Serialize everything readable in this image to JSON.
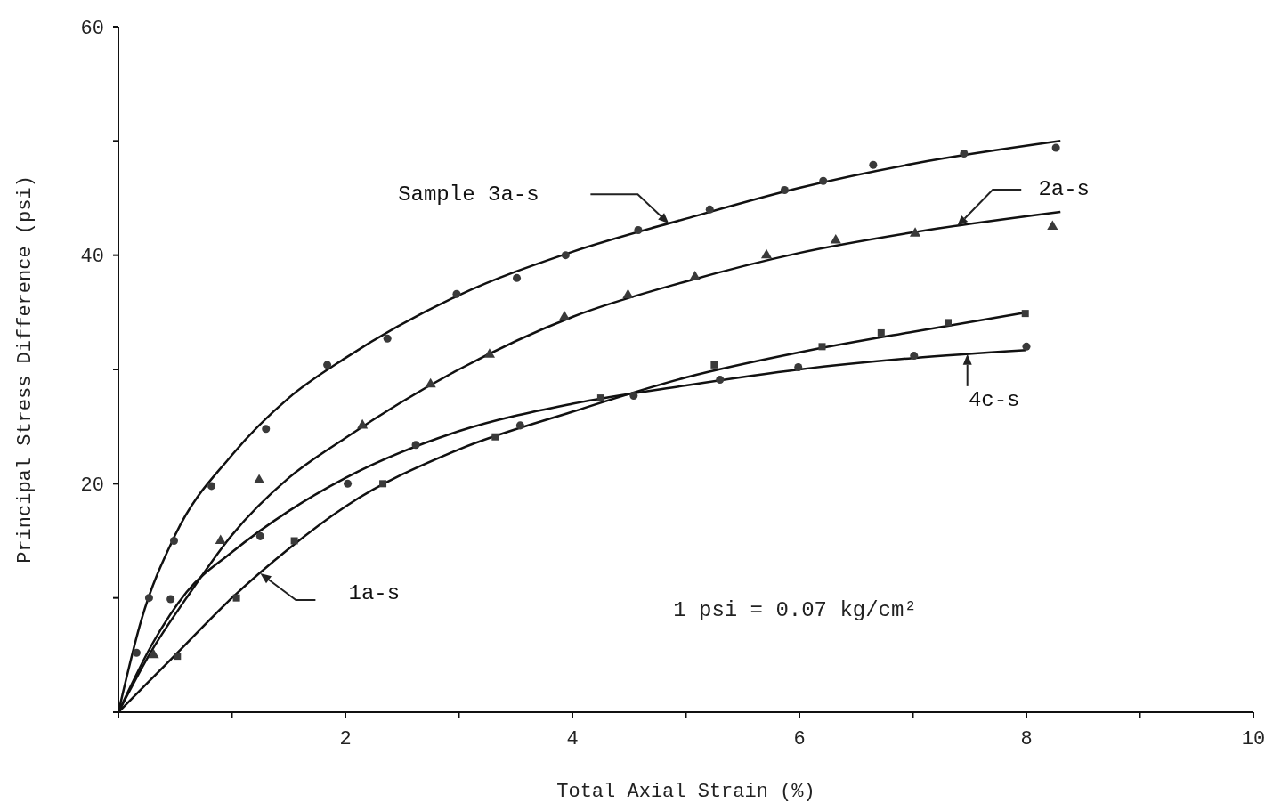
{
  "chart_data": {
    "type": "scatter",
    "xlabel": "Total Axial Strain (%)",
    "ylabel": "Principal Stress Difference (psi)",
    "xlim": [
      0,
      10
    ],
    "ylim": [
      0,
      60
    ],
    "xticks": [
      {
        "value": 0,
        "label": null
      },
      {
        "value": 1,
        "label": null
      },
      2,
      {
        "value": 3,
        "label": null
      },
      4,
      {
        "value": 5,
        "label": null
      },
      6,
      {
        "value": 7,
        "label": null
      },
      8,
      {
        "value": 9,
        "label": null
      },
      10
    ],
    "yticks": [
      {
        "value": 0,
        "label": null
      },
      {
        "value": 10,
        "label": null
      },
      20,
      {
        "value": 30,
        "label": null
      },
      40,
      {
        "value": 50,
        "label": null
      },
      60
    ],
    "series": [
      {
        "marker": "circle",
        "color": "#3a3a3a",
        "x": [
          0.27,
          0.49,
          0.82,
          1.3,
          1.84,
          2.37,
          2.98,
          3.51,
          3.94,
          4.58,
          5.21,
          5.87,
          6.21,
          6.65,
          7.45,
          8.26
        ],
        "values": [
          10,
          15,
          19.8,
          24.8,
          30.4,
          32.7,
          36.6,
          38,
          40,
          42.2,
          44,
          45.7,
          46.5,
          47.9,
          48.9,
          49.4
        ]
      },
      {
        "type": "line",
        "name": "Sample 3a-s",
        "marker": "none",
        "color": "#111111",
        "x": [
          0,
          0.2,
          0.5,
          1,
          1.5,
          2,
          3,
          4,
          5,
          6,
          7,
          8.3
        ],
        "values": [
          0,
          8,
          15.5,
          22.5,
          27.5,
          31,
          36.5,
          40.3,
          43.2,
          45.9,
          48,
          50
        ]
      },
      {
        "marker": "triangle",
        "color": "#3a3a3a",
        "x": [
          0.31,
          0.9,
          1.24,
          2.15,
          2.75,
          3.27,
          3.93,
          4.49,
          5.08,
          5.71,
          6.32,
          7.02,
          8.23
        ],
        "values": [
          5,
          15,
          20.3,
          25.1,
          28.7,
          31.3,
          34.6,
          36.5,
          38.1,
          40,
          41.3,
          41.9,
          42.5
        ]
      },
      {
        "type": "line",
        "name": "2a-s",
        "marker": "none",
        "color": "#111111",
        "x": [
          0,
          0.3,
          0.6,
          1,
          1.5,
          2,
          3,
          4,
          5,
          6,
          7,
          8.3
        ],
        "values": [
          0,
          5.5,
          10,
          15.5,
          20.5,
          24,
          30,
          34.6,
          37.7,
          40.2,
          42,
          43.8
        ]
      },
      {
        "marker": "square",
        "color": "#3a3a3a",
        "x": [
          0.52,
          1.04,
          1.55,
          2.33,
          3.32,
          4.25,
          5.25,
          6.2,
          6.72,
          7.31,
          7.99
        ],
        "values": [
          4.9,
          10,
          15,
          20,
          24.1,
          27.5,
          30.4,
          32,
          33.2,
          34.1,
          34.9
        ]
      },
      {
        "type": "line",
        "name": "1a-s",
        "marker": "none",
        "color": "#111111",
        "x": [
          0,
          0.5,
          1,
          1.5,
          2,
          3,
          4,
          5,
          6,
          7,
          8
        ],
        "values": [
          0,
          5,
          10,
          14.3,
          18,
          23,
          26.3,
          29.3,
          31.5,
          33.3,
          35
        ]
      },
      {
        "marker": "circle",
        "color": "#3a3a3a",
        "x": [
          0.16,
          0.46,
          1.25,
          2.02,
          2.62,
          3.54,
          4.54,
          5.3,
          5.99,
          7.01,
          8
        ],
        "values": [
          5.2,
          9.9,
          15.4,
          20,
          23.4,
          25.1,
          27.7,
          29.1,
          30.2,
          31.2,
          32
        ]
      },
      {
        "type": "line",
        "name": "4c-s",
        "marker": "none",
        "color": "#111111",
        "x": [
          0,
          0.3,
          0.6,
          1,
          1.5,
          2,
          3,
          4,
          5,
          6,
          7,
          8
        ],
        "values": [
          0,
          6,
          10.5,
          14,
          17.6,
          20.5,
          24.6,
          27,
          28.6,
          30,
          31,
          31.7
        ]
      }
    ],
    "annotations": [
      "1 psi = 0.07 kg/cm²"
    ]
  }
}
